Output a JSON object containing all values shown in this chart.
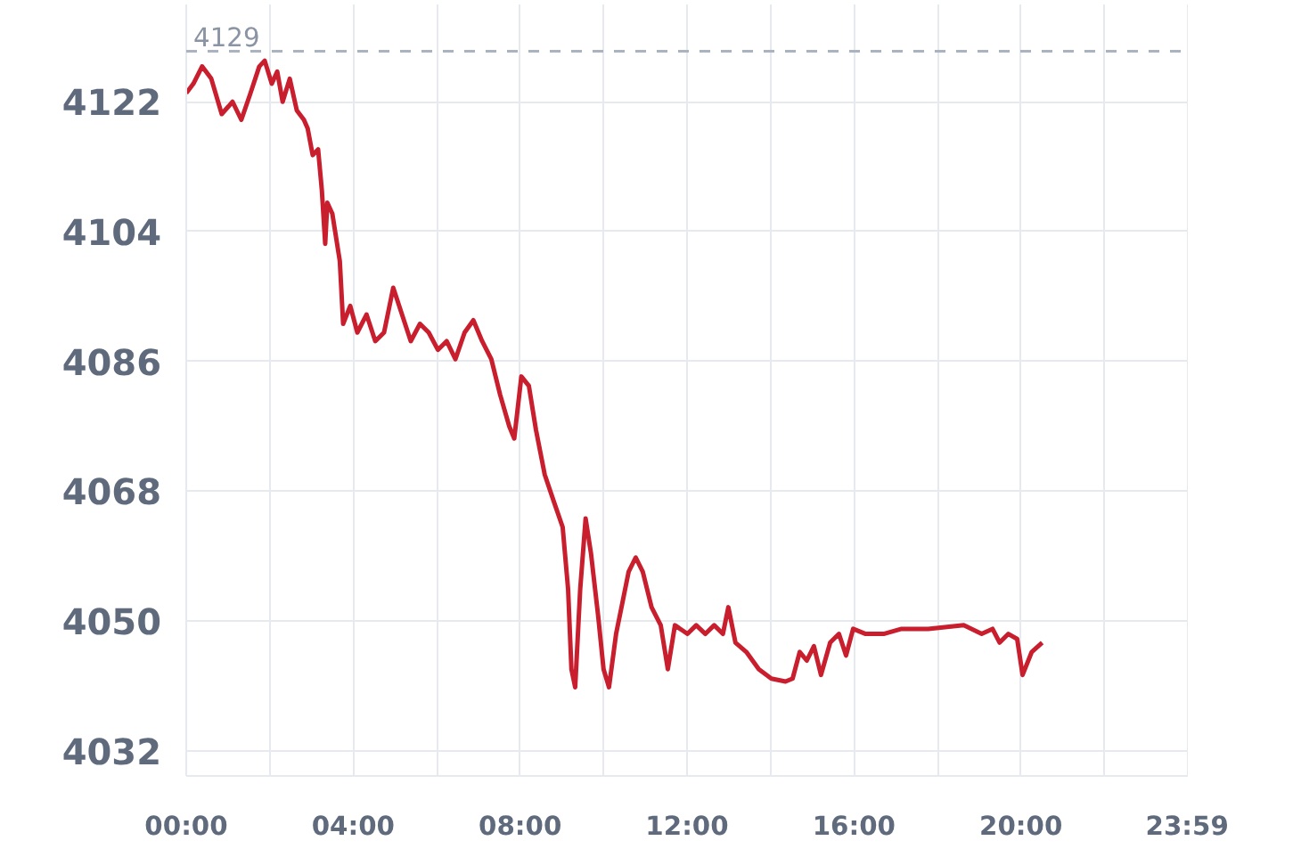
{
  "chart_data": {
    "type": "line",
    "xlim": [
      0,
      24
    ],
    "ylim": [
      4028.5,
      4135.5
    ],
    "xticks": [
      {
        "value": 0,
        "label": "00:00"
      },
      {
        "value": 2,
        "label": null
      },
      {
        "value": 4,
        "label": "04:00"
      },
      {
        "value": 6,
        "label": null
      },
      {
        "value": 8,
        "label": "08:00"
      },
      {
        "value": 10,
        "label": null
      },
      {
        "value": 12,
        "label": "12:00"
      },
      {
        "value": 14,
        "label": null
      },
      {
        "value": 16,
        "label": "16:00"
      },
      {
        "value": 18,
        "label": null
      },
      {
        "value": 20,
        "label": "20:00"
      },
      {
        "value": 22,
        "label": null
      },
      {
        "value": 23.983,
        "label": "23:59"
      }
    ],
    "yticks": [
      4032,
      4050,
      4068,
      4086,
      4104,
      4122
    ],
    "grid": true,
    "marker": "none",
    "line_style": "solid",
    "ref_lines": [
      {
        "axis": "y",
        "value": 4129,
        "label": "4129",
        "color": "#aab4c0",
        "line_style": "dashed"
      }
    ],
    "series": [
      {
        "color": "#c81e2d",
        "x": [
          0,
          0.17,
          0.38,
          0.6,
          0.85,
          1.11,
          1.32,
          1.54,
          1.75,
          1.88,
          2.05,
          2.18,
          2.31,
          2.48,
          2.65,
          2.82,
          2.91,
          3.03,
          3.16,
          3.25,
          3.33,
          3.38,
          3.5,
          3.68,
          3.76,
          3.93,
          4.1,
          4.32,
          4.53,
          4.74,
          4.96,
          5.17,
          5.38,
          5.6,
          5.81,
          6.03,
          6.24,
          6.45,
          6.67,
          6.88,
          7.09,
          7.31,
          7.52,
          7.74,
          7.86,
          8.03,
          8.21,
          8.38,
          8.59,
          8.8,
          9.02,
          9.15,
          9.23,
          9.32,
          9.44,
          9.57,
          9.7,
          9.87,
          10.0,
          10.13,
          10.3,
          10.43,
          10.6,
          10.77,
          10.94,
          11.15,
          11.37,
          11.54,
          11.71,
          12.01,
          12.22,
          12.44,
          12.65,
          12.86,
          12.99,
          13.16,
          13.42,
          13.72,
          14.02,
          14.36,
          14.53,
          14.7,
          14.87,
          15.04,
          15.21,
          15.43,
          15.64,
          15.81,
          15.98,
          16.28,
          16.71,
          17.14,
          17.78,
          18.63,
          19.06,
          19.32,
          19.49,
          19.7,
          19.91,
          20.04,
          20.26,
          20.51
        ],
        "values": [
          4123.2,
          4124.5,
          4126.9,
          4125.2,
          4120.3,
          4122.0,
          4119.5,
          4123.2,
          4126.9,
          4127.7,
          4124.5,
          4126.2,
          4122.0,
          4125.2,
          4120.8,
          4119.5,
          4118.3,
          4114.6,
          4115.4,
          4109.7,
          4102.3,
          4108.0,
          4106.5,
          4099.9,
          4091.2,
          4093.7,
          4090.0,
          4092.5,
          4088.8,
          4090.0,
          4096.2,
          4092.5,
          4088.8,
          4091.2,
          4090.0,
          4087.6,
          4088.8,
          4086.3,
          4090.0,
          4091.7,
          4088.8,
          4086.3,
          4081.4,
          4077.0,
          4075.3,
          4083.9,
          4082.6,
          4076.5,
          4070.3,
          4066.7,
          4063.0,
          4054.4,
          4043.3,
          4040.8,
          4054.4,
          4064.2,
          4059.3,
          4050.7,
          4043.3,
          4040.8,
          4048.2,
          4051.9,
          4056.8,
          4058.8,
          4056.8,
          4051.9,
          4049.4,
          4043.3,
          4049.4,
          4048.2,
          4049.4,
          4048.2,
          4049.4,
          4048.2,
          4051.9,
          4047.0,
          4045.7,
          4043.3,
          4042.0,
          4041.6,
          4042.0,
          4045.7,
          4044.5,
          4046.5,
          4042.5,
          4047.0,
          4048.2,
          4045.2,
          4048.9,
          4048.2,
          4048.2,
          4048.9,
          4048.9,
          4049.4,
          4048.2,
          4048.9,
          4047.0,
          4048.2,
          4047.5,
          4042.5,
          4045.7,
          4047.0
        ]
      }
    ]
  }
}
